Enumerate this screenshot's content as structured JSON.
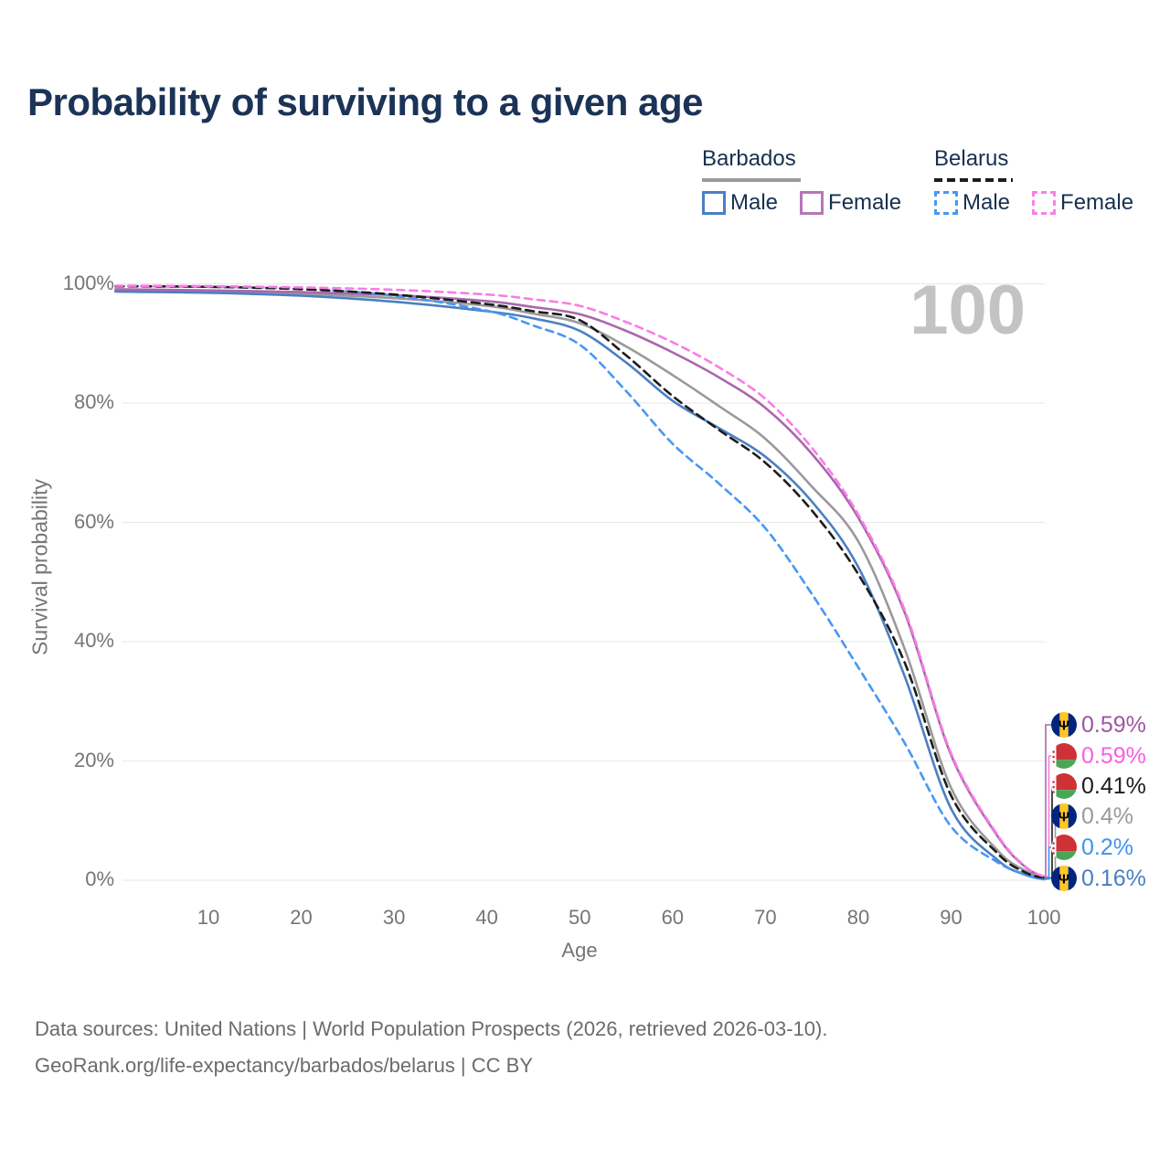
{
  "title": "Probability of surviving to a given age",
  "legend": {
    "groups": [
      {
        "country": "Barbados",
        "underline_style": "solid",
        "underline_color": "#999999",
        "items": [
          {
            "label": "Male",
            "color": "#4b7fc3",
            "dashed": false
          },
          {
            "label": "Female",
            "color": "#b677b6",
            "dashed": false
          }
        ]
      },
      {
        "country": "Belarus",
        "underline_style": "dashed",
        "underline_color": "#1c1c1c",
        "items": [
          {
            "label": "Male",
            "color": "#4897f5",
            "dashed": true
          },
          {
            "label": "Female",
            "color": "#fb7ee8",
            "dashed": true
          }
        ]
      }
    ]
  },
  "watermark_age": "100",
  "axes": {
    "xlabel": "Age",
    "ylabel": "Survival probability"
  },
  "end_labels": [
    {
      "flag": "barbados",
      "value": "0.59%",
      "color": "#9d56a0",
      "series": "Barbados · Female"
    },
    {
      "flag": "belarus",
      "value": "0.59%",
      "color": "#f75fe0",
      "series": "Belarus · Female"
    },
    {
      "flag": "belarus",
      "value": "0.41%",
      "color": "#1c1c1c",
      "series": "Belarus · Total"
    },
    {
      "flag": "barbados",
      "value": "0.4%",
      "color": "#9a9a9a",
      "series": "Barbados · Total"
    },
    {
      "flag": "belarus",
      "value": "0.2%",
      "color": "#4192f0",
      "series": "Belarus · Male"
    },
    {
      "flag": "barbados",
      "value": "0.16%",
      "color": "#4a7ec0",
      "series": "Barbados · Male"
    }
  ],
  "footer": {
    "line1": "Data sources: United Nations | World Population Prospects (2026, retrieved 2026-03-10).",
    "line2": "GeoRank.org/life-expectancy/barbados/belarus | CC BY"
  },
  "chart_data": {
    "type": "line",
    "title": "Probability of surviving to a given age",
    "xlabel": "Age",
    "ylabel": "Survival probability",
    "xlim": [
      0,
      100
    ],
    "ylim": [
      0,
      100
    ],
    "grid": "horizontal",
    "yticks": [
      {
        "label": "100%",
        "value": 100
      },
      {
        "label": "80%",
        "value": 80
      },
      {
        "label": "60%",
        "value": 60
      },
      {
        "label": "40%",
        "value": 40
      },
      {
        "label": "20%",
        "value": 20
      },
      {
        "label": "0%",
        "value": 0
      }
    ],
    "xticks": [
      {
        "label": "10",
        "value": 10
      },
      {
        "label": "20",
        "value": 20
      },
      {
        "label": "30",
        "value": 30
      },
      {
        "label": "40",
        "value": 40
      },
      {
        "label": "50",
        "value": 50
      },
      {
        "label": "60",
        "value": 60
      },
      {
        "label": "70",
        "value": 70
      },
      {
        "label": "80",
        "value": 80
      },
      {
        "label": "90",
        "value": 90
      },
      {
        "label": "100",
        "value": 100
      }
    ],
    "series": [
      {
        "name": "Barbados · Total",
        "country": "Barbados",
        "group": "Total",
        "color": "#9a9a9a",
        "dash": null,
        "points": [
          [
            0,
            98.9
          ],
          [
            10,
            98.7
          ],
          [
            20,
            98.3
          ],
          [
            30,
            97.6
          ],
          [
            40,
            96.3
          ],
          [
            45,
            95.0
          ],
          [
            50,
            93.4
          ],
          [
            55,
            89.5
          ],
          [
            60,
            84.7
          ],
          [
            65,
            79.5
          ],
          [
            70,
            74.0
          ],
          [
            75,
            66.0
          ],
          [
            80,
            56.8
          ],
          [
            85,
            38.8
          ],
          [
            90,
            15.5
          ],
          [
            95,
            5.0
          ],
          [
            98,
            1.6
          ],
          [
            100,
            0.4
          ]
        ]
      },
      {
        "name": "Barbados · Male",
        "country": "Barbados",
        "group": "Male",
        "color": "#4b7fc3",
        "dash": null,
        "points": [
          [
            0,
            98.7
          ],
          [
            10,
            98.5
          ],
          [
            20,
            98.0
          ],
          [
            30,
            97.0
          ],
          [
            40,
            95.4
          ],
          [
            45,
            94.2
          ],
          [
            50,
            92.1
          ],
          [
            55,
            86.8
          ],
          [
            60,
            80.4
          ],
          [
            65,
            75.8
          ],
          [
            70,
            71.0
          ],
          [
            75,
            63.5
          ],
          [
            80,
            52.5
          ],
          [
            85,
            34.2
          ],
          [
            90,
            12.0
          ],
          [
            95,
            3.4
          ],
          [
            98,
            0.9
          ],
          [
            100,
            0.16
          ]
        ]
      },
      {
        "name": "Barbados · Female",
        "country": "Barbados",
        "group": "Female",
        "color": "#ab67ad",
        "dash": null,
        "points": [
          [
            0,
            99.1
          ],
          [
            10,
            98.9
          ],
          [
            20,
            98.6
          ],
          [
            30,
            98.1
          ],
          [
            40,
            97.1
          ],
          [
            45,
            96.1
          ],
          [
            50,
            94.9
          ],
          [
            55,
            92.1
          ],
          [
            60,
            88.5
          ],
          [
            65,
            84.3
          ],
          [
            70,
            79.2
          ],
          [
            75,
            71.5
          ],
          [
            80,
            60.8
          ],
          [
            85,
            44.9
          ],
          [
            90,
            21.0
          ],
          [
            95,
            7.4
          ],
          [
            98,
            2.2
          ],
          [
            100,
            0.59
          ]
        ]
      },
      {
        "name": "Belarus · Male",
        "country": "Belarus",
        "group": "Male",
        "color": "#4897f5",
        "dash": "8 6",
        "points": [
          [
            0,
            99.6
          ],
          [
            10,
            99.5
          ],
          [
            20,
            99.2
          ],
          [
            30,
            98.0
          ],
          [
            40,
            95.5
          ],
          [
            45,
            93.0
          ],
          [
            50,
            89.8
          ],
          [
            55,
            82.0
          ],
          [
            60,
            73.2
          ],
          [
            65,
            66.5
          ],
          [
            70,
            59.0
          ],
          [
            75,
            48.0
          ],
          [
            80,
            35.7
          ],
          [
            85,
            23.0
          ],
          [
            90,
            9.0
          ],
          [
            95,
            3.0
          ],
          [
            98,
            1.0
          ],
          [
            100,
            0.2
          ]
        ]
      },
      {
        "name": "Belarus · Total",
        "country": "Belarus",
        "group": "Total",
        "color": "#1c1c1c",
        "dash": "9 6",
        "points": [
          [
            0,
            99.6
          ],
          [
            10,
            99.5
          ],
          [
            20,
            99.1
          ],
          [
            30,
            98.2
          ],
          [
            40,
            96.6
          ],
          [
            45,
            95.4
          ],
          [
            50,
            93.9
          ],
          [
            55,
            88.0
          ],
          [
            60,
            81.2
          ],
          [
            65,
            75.5
          ],
          [
            70,
            70.0
          ],
          [
            75,
            62.0
          ],
          [
            80,
            51.3
          ],
          [
            85,
            36.5
          ],
          [
            90,
            14.2
          ],
          [
            95,
            4.5
          ],
          [
            98,
            1.3
          ],
          [
            100,
            0.41
          ]
        ]
      },
      {
        "name": "Belarus · Female",
        "country": "Belarus",
        "group": "Female",
        "color": "#f97ce5",
        "dash": "8 6",
        "points": [
          [
            0,
            99.7
          ],
          [
            10,
            99.6
          ],
          [
            20,
            99.4
          ],
          [
            30,
            99.0
          ],
          [
            40,
            98.2
          ],
          [
            45,
            97.4
          ],
          [
            50,
            96.3
          ],
          [
            55,
            93.6
          ],
          [
            60,
            90.2
          ],
          [
            65,
            86.0
          ],
          [
            70,
            80.7
          ],
          [
            75,
            72.5
          ],
          [
            80,
            61.3
          ],
          [
            85,
            45.3
          ],
          [
            90,
            21.3
          ],
          [
            95,
            7.6
          ],
          [
            98,
            2.3
          ],
          [
            100,
            0.59
          ]
        ]
      }
    ]
  }
}
